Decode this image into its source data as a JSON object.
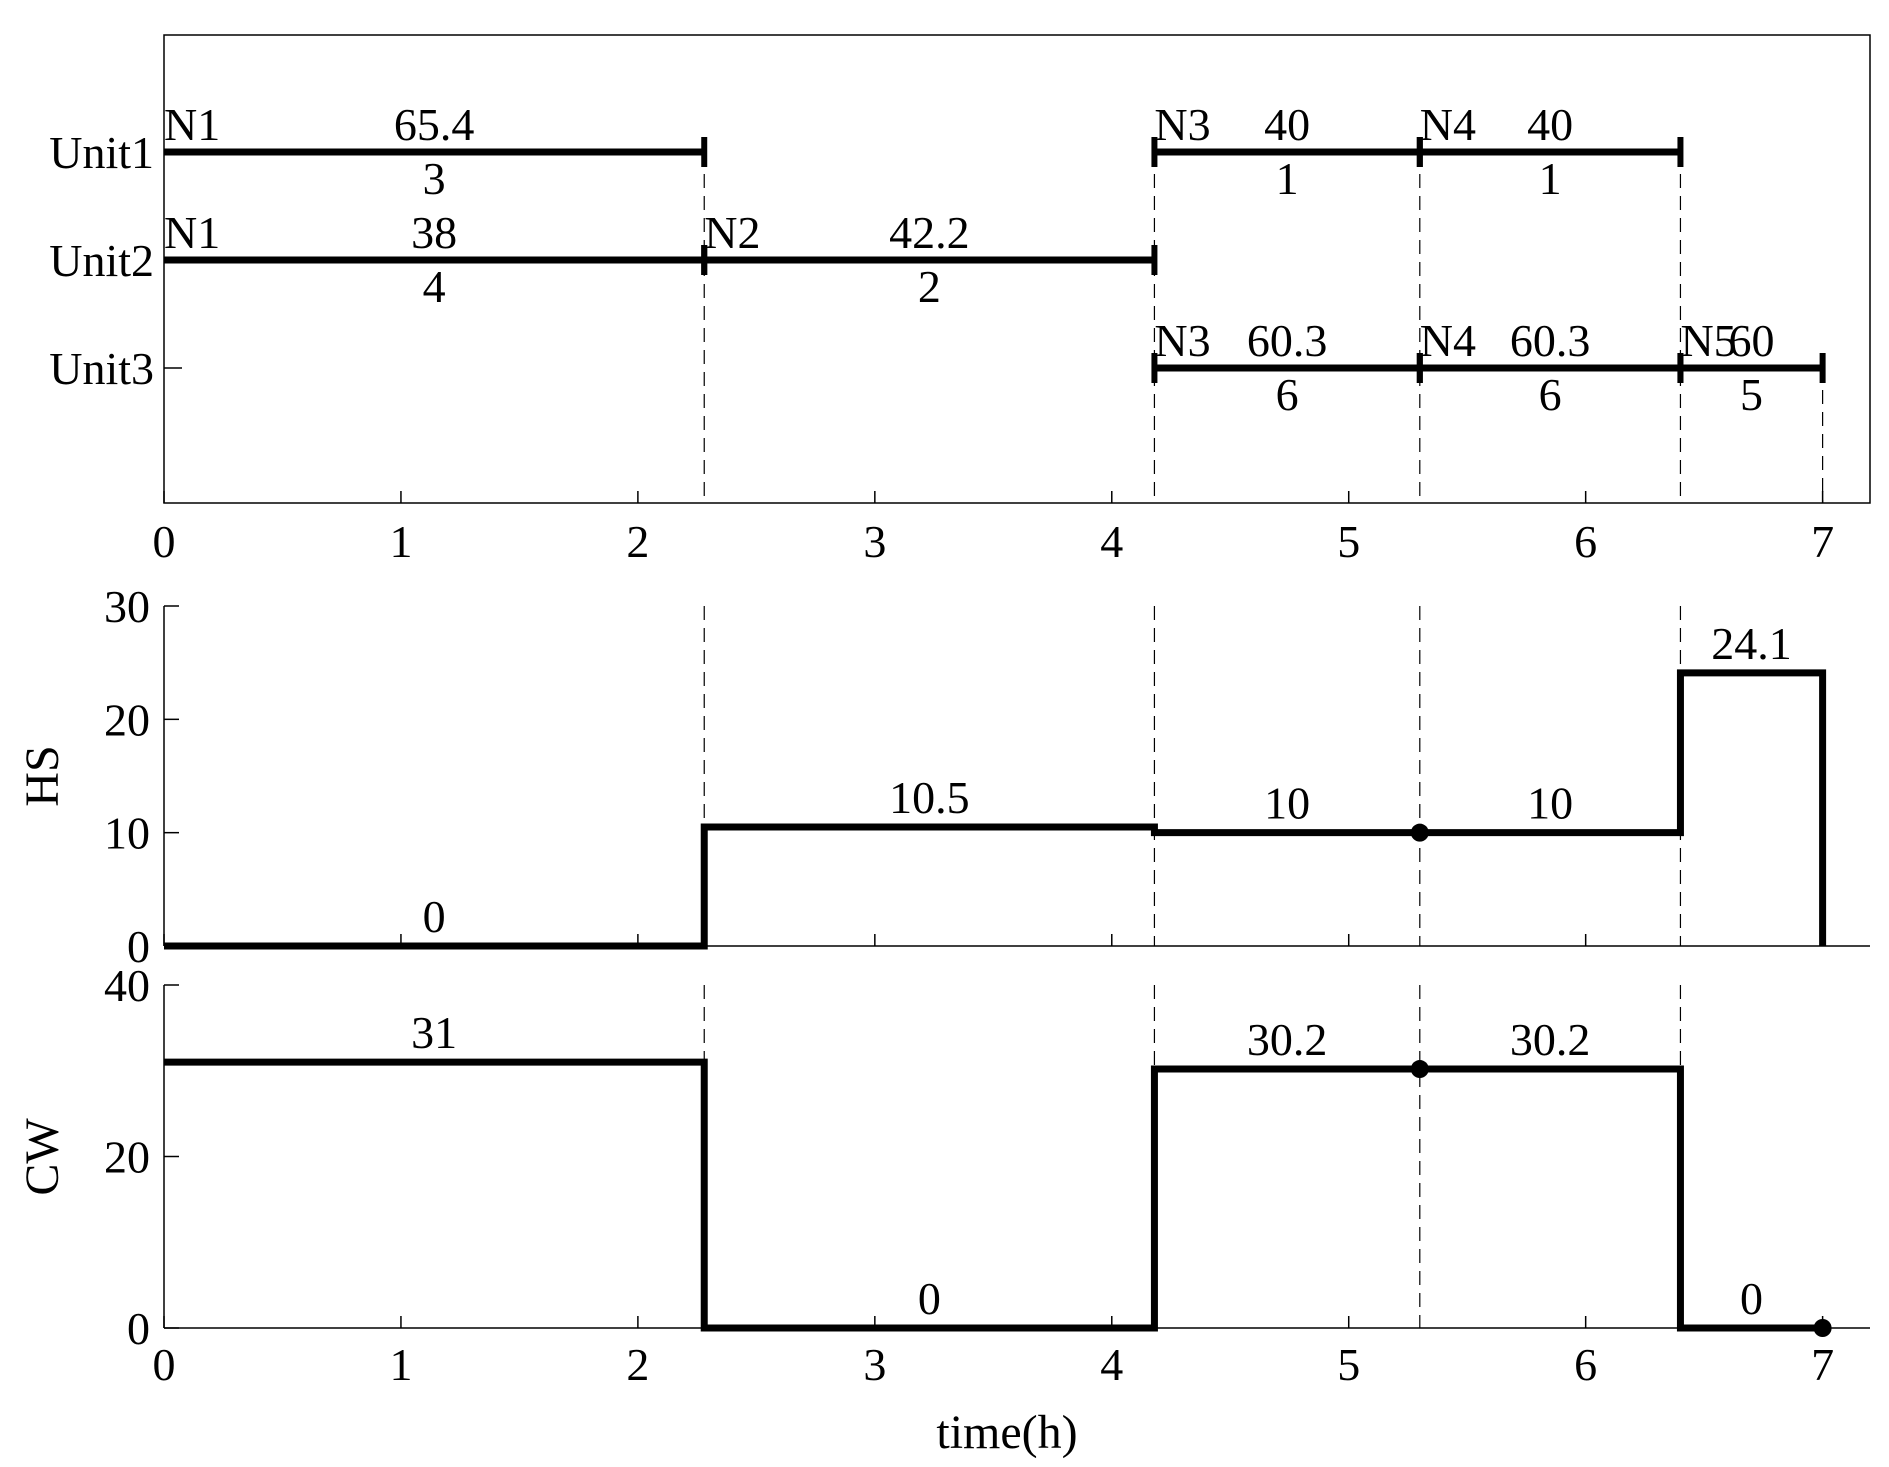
{
  "chart_data": [
    {
      "type": "gantt",
      "xlim": [
        0,
        7.2
      ],
      "x_ticks": [
        0,
        1,
        2,
        3,
        4,
        5,
        6,
        7
      ],
      "y_ticks": [
        "Unit1",
        "Unit2",
        "Unit3"
      ],
      "grid": false,
      "bars": [
        {
          "unit": "Unit1",
          "start": 0,
          "end": 2.28,
          "task": "N1",
          "amount": "65.4",
          "index": "3"
        },
        {
          "unit": "Unit1",
          "start": 4.18,
          "end": 5.3,
          "task": "N3",
          "amount": "40",
          "index": "1"
        },
        {
          "unit": "Unit1",
          "start": 5.3,
          "end": 6.4,
          "task": "N4",
          "amount": "40",
          "index": "1"
        },
        {
          "unit": "Unit2",
          "start": 0,
          "end": 2.28,
          "task": "N1",
          "amount": "38",
          "index": "4"
        },
        {
          "unit": "Unit2",
          "start": 2.28,
          "end": 4.18,
          "task": "N2",
          "amount": "42.2",
          "index": "2"
        },
        {
          "unit": "Unit3",
          "start": 4.18,
          "end": 5.3,
          "task": "N3",
          "amount": "60.3",
          "index": "6"
        },
        {
          "unit": "Unit3",
          "start": 5.3,
          "end": 6.4,
          "task": "N4",
          "amount": "60.3",
          "index": "6"
        },
        {
          "unit": "Unit3",
          "start": 6.4,
          "end": 7.0,
          "task": "N5",
          "amount": "60",
          "index": "5"
        }
      ],
      "event_times": [
        2.28,
        4.18,
        5.3,
        6.4,
        7.0
      ]
    },
    {
      "type": "line",
      "ylabel": "HS",
      "xlim": [
        0,
        7.2
      ],
      "ylim": [
        0,
        30
      ],
      "y_ticks": [
        0,
        10,
        20,
        30
      ],
      "grid": false,
      "segments": [
        {
          "start": 0,
          "end": 2.28,
          "value": 0,
          "label": "0"
        },
        {
          "start": 2.28,
          "end": 4.18,
          "value": 10.5,
          "label": "10.5"
        },
        {
          "start": 4.18,
          "end": 5.3,
          "value": 10,
          "label": "10"
        },
        {
          "start": 5.3,
          "end": 6.4,
          "value": 10,
          "label": "10"
        },
        {
          "start": 6.4,
          "end": 7.0,
          "value": 24.1,
          "label": "24.1"
        }
      ],
      "end_value": 0,
      "markers": [
        {
          "x": 5.3,
          "y": 10
        }
      ]
    },
    {
      "type": "line",
      "ylabel": "CW",
      "xlabel": "time(h)",
      "xlim": [
        0,
        7.2
      ],
      "ylim": [
        0,
        40
      ],
      "x_ticks": [
        0,
        1,
        2,
        3,
        4,
        5,
        6,
        7
      ],
      "y_ticks": [
        0,
        20,
        40
      ],
      "grid": false,
      "segments": [
        {
          "start": 0,
          "end": 2.28,
          "value": 31,
          "label": "31"
        },
        {
          "start": 2.28,
          "end": 4.18,
          "value": 0,
          "label": "0"
        },
        {
          "start": 4.18,
          "end": 5.3,
          "value": 30.2,
          "label": "30.2"
        },
        {
          "start": 5.3,
          "end": 6.4,
          "value": 30.2,
          "label": "30.2"
        },
        {
          "start": 6.4,
          "end": 7.0,
          "value": 0,
          "label": "0"
        }
      ],
      "markers": [
        {
          "x": 5.3,
          "y": 30.2
        },
        {
          "x": 7.0,
          "y": 0
        }
      ]
    }
  ]
}
